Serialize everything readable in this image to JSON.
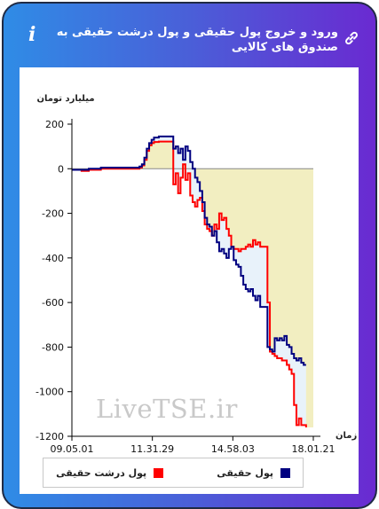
{
  "header": {
    "title": "ورود و خروج پول حقیقی و پول درشت حقیقی به صندوق های کالایی",
    "info_icon": "i",
    "icons": [
      "link-icon",
      "info-icon"
    ]
  },
  "colors": {
    "header_gradient_start": "#2f8ce6",
    "header_gradient_end": "#6a2ad1",
    "real_money": "#000080",
    "big_real_money": "#ff0000",
    "fill_between": "#e8f2fa",
    "fill_area": "#f2eec1"
  },
  "watermark": "LiveTSE.ir",
  "chart_data": {
    "type": "line",
    "ylabel": "میلیارد تومان",
    "xlabel": "زمان",
    "ylim": [
      -1200,
      200
    ],
    "yticks": [
      200,
      0,
      -200,
      -400,
      -600,
      -800,
      -1000,
      -1200
    ],
    "xticks": [
      "09.05.01",
      "11.31.29",
      "14.58.03",
      "18.01.21"
    ],
    "x_range": [
      "09.05.01",
      "18.01.21"
    ],
    "grid": false,
    "legend_position": "bottom",
    "series": [
      {
        "name": "پول حقیقی",
        "color": "#000080",
        "values": [
          [
            0.0,
            -5
          ],
          [
            0.04,
            -5
          ],
          [
            0.07,
            0
          ],
          [
            0.11,
            0
          ],
          [
            0.12,
            5
          ],
          [
            0.26,
            5
          ],
          [
            0.28,
            10
          ],
          [
            0.29,
            20
          ],
          [
            0.3,
            50
          ],
          [
            0.31,
            90
          ],
          [
            0.32,
            115
          ],
          [
            0.33,
            130
          ],
          [
            0.34,
            140
          ],
          [
            0.36,
            145
          ],
          [
            0.41,
            145
          ],
          [
            0.42,
            90
          ],
          [
            0.43,
            100
          ],
          [
            0.44,
            70
          ],
          [
            0.45,
            90
          ],
          [
            0.46,
            40
          ],
          [
            0.47,
            100
          ],
          [
            0.48,
            80
          ],
          [
            0.49,
            30
          ],
          [
            0.5,
            0
          ],
          [
            0.51,
            -40
          ],
          [
            0.52,
            -60
          ],
          [
            0.53,
            -100
          ],
          [
            0.54,
            -150
          ],
          [
            0.55,
            -220
          ],
          [
            0.56,
            -250
          ],
          [
            0.57,
            -260
          ],
          [
            0.58,
            -300
          ],
          [
            0.59,
            -280
          ],
          [
            0.6,
            -330
          ],
          [
            0.61,
            -370
          ],
          [
            0.62,
            -360
          ],
          [
            0.63,
            -380
          ],
          [
            0.64,
            -400
          ],
          [
            0.65,
            -360
          ],
          [
            0.66,
            -350
          ],
          [
            0.67,
            -410
          ],
          [
            0.68,
            -430
          ],
          [
            0.69,
            -440
          ],
          [
            0.7,
            -480
          ],
          [
            0.71,
            -520
          ],
          [
            0.72,
            -540
          ],
          [
            0.73,
            -550
          ],
          [
            0.74,
            -540
          ],
          [
            0.75,
            -570
          ],
          [
            0.76,
            -590
          ],
          [
            0.77,
            -570
          ],
          [
            0.78,
            -620
          ],
          [
            0.79,
            -620
          ],
          [
            0.8,
            -620
          ],
          [
            0.81,
            -800
          ],
          [
            0.82,
            -810
          ],
          [
            0.83,
            -820
          ],
          [
            0.84,
            -760
          ],
          [
            0.85,
            -770
          ],
          [
            0.86,
            -760
          ],
          [
            0.87,
            -770
          ],
          [
            0.88,
            -750
          ],
          [
            0.89,
            -790
          ],
          [
            0.9,
            -800
          ],
          [
            0.91,
            -830
          ],
          [
            0.92,
            -850
          ],
          [
            0.93,
            -860
          ],
          [
            0.94,
            -850
          ],
          [
            0.95,
            -870
          ],
          [
            0.96,
            -880
          ],
          [
            0.97,
            -880
          ]
        ]
      },
      {
        "name": "پول درشت حقیقی",
        "color": "#ff0000",
        "values": [
          [
            0.0,
            -5
          ],
          [
            0.04,
            -10
          ],
          [
            0.07,
            -5
          ],
          [
            0.11,
            -5
          ],
          [
            0.12,
            0
          ],
          [
            0.26,
            0
          ],
          [
            0.28,
            5
          ],
          [
            0.29,
            15
          ],
          [
            0.3,
            40
          ],
          [
            0.31,
            80
          ],
          [
            0.32,
            105
          ],
          [
            0.33,
            115
          ],
          [
            0.34,
            120
          ],
          [
            0.36,
            122
          ],
          [
            0.41,
            122
          ],
          [
            0.42,
            -70
          ],
          [
            0.43,
            -20
          ],
          [
            0.44,
            -110
          ],
          [
            0.45,
            -40
          ],
          [
            0.46,
            20
          ],
          [
            0.47,
            -50
          ],
          [
            0.48,
            -20
          ],
          [
            0.49,
            -120
          ],
          [
            0.5,
            -150
          ],
          [
            0.51,
            -170
          ],
          [
            0.52,
            -140
          ],
          [
            0.53,
            -130
          ],
          [
            0.54,
            -190
          ],
          [
            0.55,
            -250
          ],
          [
            0.56,
            -270
          ],
          [
            0.57,
            -280
          ],
          [
            0.58,
            -300
          ],
          [
            0.59,
            -250
          ],
          [
            0.6,
            -270
          ],
          [
            0.61,
            -200
          ],
          [
            0.62,
            -230
          ],
          [
            0.63,
            -220
          ],
          [
            0.64,
            -270
          ],
          [
            0.65,
            -300
          ],
          [
            0.66,
            -350
          ],
          [
            0.67,
            -360
          ],
          [
            0.68,
            -360
          ],
          [
            0.69,
            -370
          ],
          [
            0.7,
            -360
          ],
          [
            0.71,
            -360
          ],
          [
            0.72,
            -350
          ],
          [
            0.73,
            -340
          ],
          [
            0.74,
            -350
          ],
          [
            0.75,
            -320
          ],
          [
            0.76,
            -340
          ],
          [
            0.77,
            -330
          ],
          [
            0.78,
            -350
          ],
          [
            0.79,
            -350
          ],
          [
            0.8,
            -350
          ],
          [
            0.81,
            -600
          ],
          [
            0.82,
            -820
          ],
          [
            0.83,
            -830
          ],
          [
            0.84,
            -840
          ],
          [
            0.85,
            -850
          ],
          [
            0.86,
            -850
          ],
          [
            0.87,
            -860
          ],
          [
            0.88,
            -860
          ],
          [
            0.89,
            -880
          ],
          [
            0.9,
            -900
          ],
          [
            0.91,
            -920
          ],
          [
            0.92,
            -1060
          ],
          [
            0.93,
            -1150
          ],
          [
            0.94,
            -1120
          ],
          [
            0.95,
            -1150
          ],
          [
            0.96,
            -1150
          ],
          [
            0.97,
            -1160
          ]
        ]
      }
    ]
  }
}
